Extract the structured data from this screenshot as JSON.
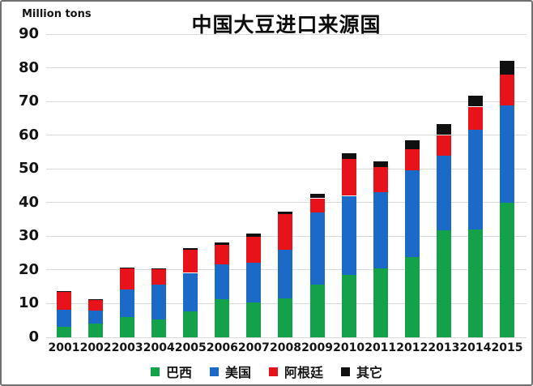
{
  "chart_data": {
    "type": "bar",
    "subtype": "stacked-vertical",
    "title": "中国大豆进口来源国",
    "ylabel": "Million tons",
    "xlabel": "",
    "ylim": [
      0,
      90
    ],
    "yticks": [
      0,
      10,
      20,
      30,
      40,
      50,
      60,
      70,
      80,
      90
    ],
    "grid": true,
    "legend_position": "bottom",
    "categories": [
      "2001",
      "2002",
      "2003",
      "2004",
      "2005",
      "2006",
      "2007",
      "2008",
      "2009",
      "2010",
      "2011",
      "2012",
      "2013",
      "2014",
      "2015"
    ],
    "series": [
      {
        "name": "巴西",
        "color": "#13a24a",
        "values": [
          3.2,
          4.0,
          6.0,
          5.2,
          7.8,
          11.2,
          10.4,
          11.5,
          15.6,
          18.6,
          20.5,
          23.9,
          31.7,
          32.0,
          40.0
        ]
      },
      {
        "name": "美国",
        "color": "#1c6ac8",
        "values": [
          5.0,
          3.9,
          8.3,
          10.4,
          11.4,
          10.5,
          11.7,
          14.6,
          21.5,
          23.4,
          22.5,
          25.7,
          22.3,
          29.7,
          28.8
        ]
      },
      {
        "name": "阿根廷",
        "color": "#e8121b",
        "values": [
          5.2,
          3.2,
          6.2,
          4.5,
          6.9,
          5.7,
          7.7,
          10.5,
          4.2,
          11.0,
          7.5,
          6.3,
          6.1,
          6.8,
          9.1
        ]
      },
      {
        "name": "其它",
        "color": "#101010",
        "values": [
          0.3,
          0.2,
          0.2,
          0.2,
          0.5,
          0.8,
          1.0,
          0.8,
          1.2,
          1.8,
          1.7,
          2.6,
          3.2,
          3.2,
          4.1
        ]
      }
    ],
    "totals": [
      13.7,
      11.3,
      20.7,
      20.3,
      26.6,
      28.2,
      30.8,
      37.4,
      42.5,
      54.8,
      52.2,
      58.5,
      63.3,
      71.7,
      82.0
    ]
  },
  "colors": {
    "grid": "#d9d9d9",
    "text": "#141414",
    "background": "#ffffff",
    "frame_border": "#707070"
  }
}
